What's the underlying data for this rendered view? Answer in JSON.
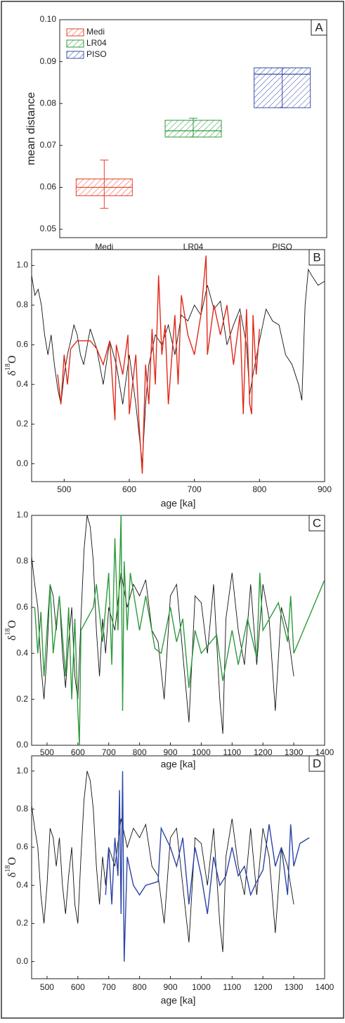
{
  "chart_data": [
    {
      "type": "box",
      "panel_label": "A",
      "ylabel": "mean distance",
      "categories": [
        "Medi",
        "LR04",
        "PISO"
      ],
      "series": [
        {
          "name": "Medi",
          "color": "#e8402a",
          "min": 0.055,
          "q1": 0.058,
          "median": 0.06,
          "q3": 0.062,
          "max": 0.0665
        },
        {
          "name": "LR04",
          "color": "#2e9a3c",
          "min": 0.072,
          "q1": 0.072,
          "median": 0.0735,
          "q3": 0.076,
          "max": 0.0765
        },
        {
          "name": "PISO",
          "color": "#3a50a8",
          "min": 0.079,
          "q1": 0.079,
          "median": 0.087,
          "q3": 0.0885,
          "max": 0.0885
        }
      ],
      "ylim": [
        0.048,
        0.1
      ],
      "yticks": [
        0.05,
        0.06,
        0.07,
        0.08,
        0.09,
        {
          "value": 0.1,
          "label": "0.10"
        }
      ],
      "legend": "upper left"
    },
    {
      "type": "line",
      "panel_label": "B",
      "xlabel": "age [ka]",
      "ylabel": [
        "δ",
        "18",
        "O"
      ],
      "xlim": [
        450,
        900
      ],
      "xticks": [
        500,
        600,
        700,
        800,
        900
      ],
      "ylim": [
        -0.09,
        1.08
      ],
      "yticks": [
        {
          "value": 0,
          "label": "0.0"
        },
        0.2,
        0.4,
        0.6,
        0.8,
        {
          "value": 1,
          "label": "1.0"
        }
      ],
      "series": [
        {
          "color": "#111111",
          "x": [
            450,
            455,
            460,
            465,
            470,
            475,
            480,
            485,
            490,
            495,
            500,
            505,
            510,
            515,
            520,
            525,
            530,
            540,
            550,
            560,
            570,
            580,
            590,
            600,
            610,
            615,
            620,
            625,
            630,
            640,
            650,
            660,
            670,
            680,
            690,
            700,
            710,
            720,
            730,
            740,
            750,
            760,
            770,
            780,
            785,
            790,
            800,
            810,
            820,
            830,
            840,
            850,
            860,
            865,
            870,
            875,
            880,
            890,
            900
          ],
          "values": [
            0.95,
            0.85,
            0.88,
            0.8,
            0.65,
            0.55,
            0.65,
            0.5,
            0.38,
            0.3,
            0.45,
            0.55,
            0.62,
            0.7,
            0.65,
            0.55,
            0.5,
            0.68,
            0.58,
            0.4,
            0.62,
            0.5,
            0.3,
            0.55,
            0.3,
            0.15,
            0.0,
            0.3,
            0.5,
            0.65,
            0.6,
            0.7,
            0.55,
            0.75,
            0.72,
            0.8,
            0.75,
            0.9,
            0.78,
            0.82,
            0.6,
            0.7,
            0.78,
            0.6,
            0.35,
            0.45,
            0.62,
            0.78,
            0.72,
            0.7,
            0.55,
            0.5,
            0.4,
            0.32,
            0.8,
            0.98,
            0.95,
            0.9,
            0.92
          ]
        },
        {
          "color": "#e02a1a",
          "x": [
            490,
            495,
            500,
            505,
            510,
            520,
            530,
            540,
            550,
            560,
            570,
            578,
            580,
            590,
            598,
            600,
            610,
            615,
            620,
            625,
            630,
            635,
            640,
            645,
            650,
            655,
            660,
            670,
            675,
            680,
            690,
            700,
            710,
            718,
            720,
            730,
            740,
            750,
            760,
            770,
            775,
            780,
            785,
            788,
            790,
            795,
            800
          ],
          "values": [
            0.45,
            0.3,
            0.55,
            0.4,
            0.58,
            0.62,
            0.62,
            0.62,
            0.58,
            0.5,
            0.62,
            0.22,
            0.6,
            0.45,
            0.65,
            0.25,
            0.55,
            0.2,
            -0.05,
            0.5,
            0.3,
            0.68,
            0.4,
            0.95,
            0.55,
            0.7,
            0.3,
            0.75,
            0.4,
            0.85,
            0.65,
            0.55,
            0.75,
            1.05,
            0.55,
            0.8,
            0.65,
            0.8,
            0.5,
            0.75,
            0.25,
            0.78,
            0.3,
            0.25,
            0.75,
            0.45,
            0.68
          ]
        }
      ]
    },
    {
      "type": "line",
      "panel_label": "C",
      "xlabel": "age [ka]",
      "ylabel": [
        "δ",
        "18",
        "O"
      ],
      "xlim": [
        450,
        1400
      ],
      "xticks": [
        500,
        600,
        700,
        800,
        900,
        1000,
        1100,
        1200,
        1300,
        1400
      ],
      "ylim": [
        0,
        1
      ],
      "yticks": [
        {
          "value": 0,
          "label": "0.0"
        },
        0.2,
        0.4,
        0.6,
        0.8,
        {
          "value": 1,
          "label": "1.0"
        }
      ],
      "series": [
        {
          "color": "#111111",
          "x": [
            450,
            460,
            470,
            480,
            490,
            500,
            510,
            520,
            530,
            540,
            550,
            560,
            570,
            580,
            590,
            600,
            610,
            620,
            630,
            640,
            650,
            660,
            670,
            680,
            690,
            700,
            720,
            740,
            760,
            780,
            800,
            820,
            840,
            860,
            880,
            900,
            920,
            940,
            960,
            980,
            1000,
            1020,
            1040,
            1060,
            1070,
            1080,
            1100,
            1120,
            1140,
            1160,
            1180,
            1200,
            1220,
            1240,
            1260,
            1280,
            1300
          ],
          "values": [
            0.82,
            0.7,
            0.6,
            0.35,
            0.2,
            0.4,
            0.7,
            0.65,
            0.5,
            0.65,
            0.4,
            0.25,
            0.45,
            0.6,
            0.3,
            0.2,
            0.55,
            0.85,
            1.0,
            0.95,
            0.8,
            0.5,
            0.3,
            0.55,
            0.4,
            0.6,
            0.5,
            0.75,
            0.6,
            0.7,
            0.65,
            0.72,
            0.5,
            0.45,
            0.2,
            0.65,
            0.7,
            0.4,
            0.1,
            0.65,
            0.62,
            0.4,
            0.7,
            0.2,
            0.05,
            0.55,
            0.75,
            0.5,
            0.35,
            0.7,
            0.35,
            0.7,
            0.55,
            0.15,
            0.6,
            0.5,
            0.3
          ]
        },
        {
          "color": "#2e9a3c",
          "x": [
            460,
            470,
            480,
            490,
            500,
            510,
            520,
            540,
            560,
            570,
            580,
            590,
            600,
            605,
            610,
            650,
            660,
            680,
            700,
            710,
            720,
            730,
            740,
            745,
            750,
            760,
            770,
            800,
            820,
            850,
            870,
            900,
            920,
            940,
            960,
            980,
            1000,
            1050,
            1070,
            1100,
            1120,
            1150,
            1180,
            1190,
            1200,
            1250,
            1280,
            1290,
            1300,
            1400
          ],
          "values": [
            0.6,
            0.4,
            0.58,
            0.3,
            0.5,
            0.7,
            0.4,
            0.65,
            0.3,
            0.6,
            0.2,
            0.55,
            0.15,
            0.0,
            0.5,
            0.6,
            0.7,
            0.45,
            0.75,
            0.35,
            0.9,
            0.5,
            1.0,
            0.15,
            0.8,
            0.5,
            0.75,
            0.5,
            0.65,
            0.42,
            0.4,
            0.6,
            0.45,
            0.55,
            0.25,
            0.5,
            0.4,
            0.48,
            0.28,
            0.5,
            0.35,
            0.55,
            0.38,
            0.75,
            0.5,
            0.62,
            0.45,
            0.65,
            0.4,
            0.72
          ]
        }
      ]
    },
    {
      "type": "line",
      "panel_label": "D",
      "xlabel": "age [ka]",
      "ylabel": [
        "δ",
        "18",
        "O"
      ],
      "xlim": [
        450,
        1400
      ],
      "xticks": [
        500,
        600,
        700,
        800,
        900,
        1000,
        1100,
        1200,
        1300,
        1400
      ],
      "ylim": [
        -0.09,
        1.08
      ],
      "yticks": [
        {
          "value": 0,
          "label": "0.0"
        },
        0.2,
        0.4,
        0.6,
        0.8,
        {
          "value": 1,
          "label": "1.0"
        }
      ],
      "series": [
        {
          "color": "#111111",
          "x": [
            450,
            460,
            470,
            480,
            490,
            500,
            510,
            520,
            530,
            540,
            550,
            560,
            570,
            580,
            590,
            600,
            610,
            620,
            630,
            640,
            650,
            660,
            670,
            680,
            690,
            700,
            720,
            740,
            760,
            780,
            800,
            820,
            840,
            860,
            880,
            900,
            920,
            940,
            960,
            980,
            1000,
            1020,
            1040,
            1060,
            1070,
            1080,
            1100,
            1120,
            1140,
            1160,
            1180,
            1200,
            1220,
            1240,
            1260,
            1280,
            1300
          ],
          "values": [
            0.82,
            0.7,
            0.6,
            0.35,
            0.2,
            0.4,
            0.7,
            0.65,
            0.5,
            0.65,
            0.4,
            0.25,
            0.45,
            0.6,
            0.3,
            0.2,
            0.55,
            0.85,
            1.0,
            0.95,
            0.8,
            0.5,
            0.3,
            0.55,
            0.4,
            0.6,
            0.5,
            0.75,
            0.6,
            0.7,
            0.65,
            0.72,
            0.5,
            0.45,
            0.2,
            0.65,
            0.7,
            0.4,
            0.1,
            0.65,
            0.62,
            0.4,
            0.7,
            0.2,
            0.05,
            0.55,
            0.75,
            0.5,
            0.35,
            0.7,
            0.35,
            0.7,
            0.55,
            0.15,
            0.6,
            0.5,
            0.3
          ]
        },
        {
          "color": "#2a44a8",
          "x": [
            690,
            700,
            710,
            720,
            730,
            735,
            740,
            745,
            750,
            760,
            780,
            800,
            820,
            860,
            870,
            900,
            920,
            940,
            960,
            980,
            1000,
            1020,
            1040,
            1060,
            1080,
            1100,
            1120,
            1140,
            1160,
            1180,
            1200,
            1220,
            1240,
            1260,
            1280,
            1290,
            1300,
            1320,
            1350
          ],
          "values": [
            0.35,
            0.6,
            0.3,
            0.65,
            0.45,
            0.9,
            0.25,
            1.0,
            0.0,
            0.55,
            0.4,
            0.35,
            0.4,
            0.42,
            0.7,
            0.6,
            0.5,
            0.65,
            0.3,
            0.6,
            0.45,
            0.25,
            0.55,
            0.4,
            0.45,
            0.6,
            0.45,
            0.5,
            0.35,
            0.42,
            0.48,
            0.72,
            0.5,
            0.6,
            0.35,
            0.72,
            0.5,
            0.62,
            0.65
          ]
        }
      ]
    }
  ]
}
